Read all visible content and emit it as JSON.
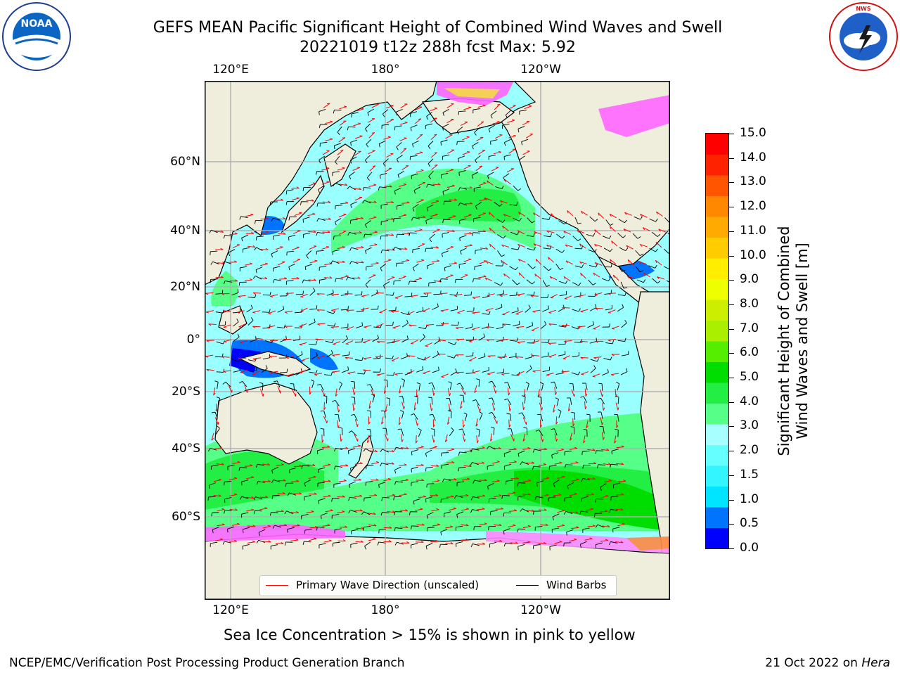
{
  "title": {
    "line1": "GEFS MEAN Pacific Significant Height of Combined Wind Waves and Swell",
    "line2": "20221019 t12z 288h fcst   Max: 5.92"
  },
  "logos": {
    "left": {
      "name": "noaa-logo",
      "center_text": "NOAA",
      "ring_text": "NATIONAL OCEANIC AND ATMOSPHERIC ADMINISTRATION",
      "ring_text_bottom": "U.S. DEPARTMENT OF COMMERCE"
    },
    "right": {
      "name": "nws-logo",
      "ring_text": "NATIONAL WEATHER SERVICE"
    }
  },
  "axes": {
    "top": [
      "120°E",
      "180°",
      "120°W"
    ],
    "bottom": [
      "120°E",
      "180°",
      "120°W"
    ],
    "left": [
      "60°N",
      "40°N",
      "20°N",
      "0°",
      "20°S",
      "40°S",
      "60°S"
    ]
  },
  "colorbar": {
    "label_line1": "Significant Height of Combined",
    "label_line2": "Wind Waves and Swell [m]",
    "ticks": [
      "15.0",
      "14.0",
      "13.0",
      "12.0",
      "11.0",
      "10.0",
      "9.0",
      "8.0",
      "7.0",
      "6.0",
      "5.0",
      "4.0",
      "3.0",
      "2.0",
      "1.5",
      "1.0",
      "0.5",
      "0.0"
    ],
    "colors": [
      "#0000ff",
      "#0073ff",
      "#00e5ff",
      "#33f5ff",
      "#66ffff",
      "#a8ffff",
      "#55ff88",
      "#22ee44",
      "#00dd00",
      "#55ee00",
      "#aaee00",
      "#ccee00",
      "#eeff00",
      "#ffee00",
      "#ffcc00",
      "#ffaa00",
      "#ff8800",
      "#ff5500",
      "#ff2200",
      "#ff0000"
    ]
  },
  "legend": {
    "items": [
      {
        "label": "Primary Wave Direction (unscaled)",
        "color": "#ff0000"
      },
      {
        "label": "Wind Barbs",
        "color": "#000000"
      }
    ]
  },
  "map": {
    "land_color": "#efeddc",
    "ocean_base_color": "#99ffff",
    "ice_colors": [
      "#ff66ff",
      "#ff8844",
      "#ffcc44"
    ]
  },
  "footnote": "Sea Ice Concentration > 15% is shown in pink to yellow",
  "footer": {
    "left": "NCEP/EMC/Verification Post Processing Product Generation Branch",
    "right_prefix": "21 Oct 2022 on ",
    "right_machine": "Hera"
  }
}
